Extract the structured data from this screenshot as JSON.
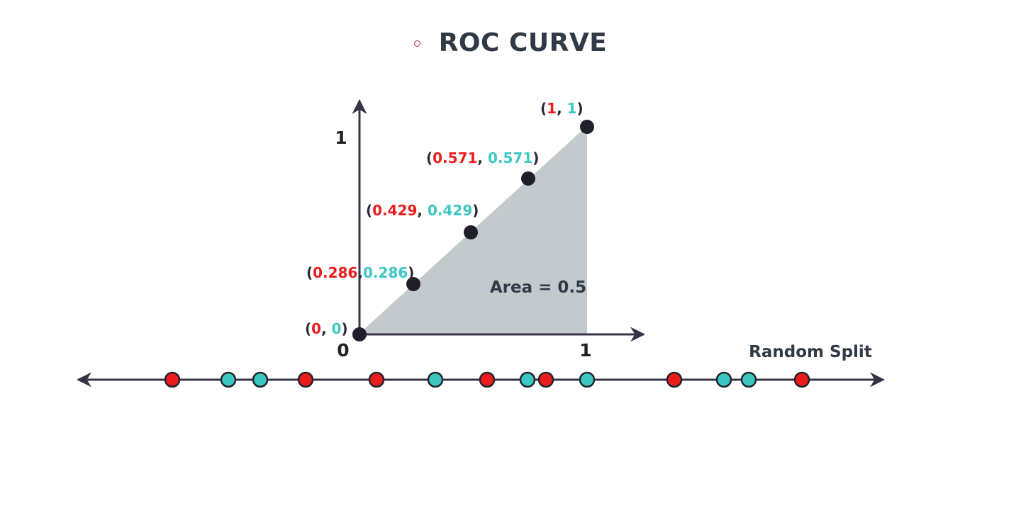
{
  "title": "ROC CURVE",
  "colors": {
    "red": "#ea1c1c",
    "teal": "#3cc7c2",
    "axis": "#343347",
    "area_fill": "#c3cace",
    "point": "#1f1f2b",
    "title_bullet": "#c2185b"
  },
  "axis_labels": {
    "origin": "0",
    "y_one": "1",
    "x_one": "1"
  },
  "area_label": "Area = 0.5",
  "number_line_label": "Random Split",
  "roc_points": [
    {
      "x": "0",
      "y": "0"
    },
    {
      "x": "0.286",
      "y": "0.286"
    },
    {
      "x": "0.429",
      "y": "0.429"
    },
    {
      "x": "0.571",
      "y": "0.571"
    },
    {
      "x": "1",
      "y": "1"
    }
  ],
  "number_line_points": [
    "red",
    "teal",
    "teal",
    "red",
    "red",
    "teal",
    "red",
    "teal",
    "red",
    "teal",
    "red",
    "teal",
    "teal",
    "red"
  ]
}
